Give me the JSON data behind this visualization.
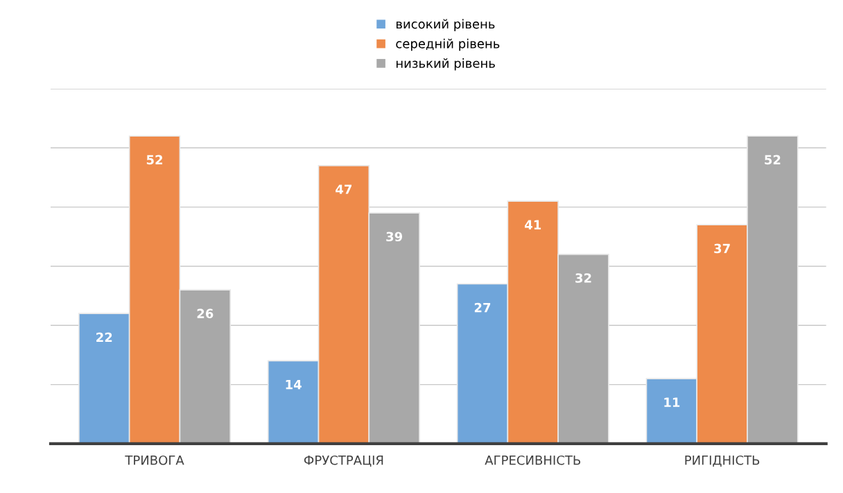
{
  "chart_data": {
    "type": "bar",
    "categories": [
      "ТРИВОГА",
      "ФРУСТРАЦІЯ",
      "АГРЕСИВНІСТЬ",
      "РИГІДНІСТЬ"
    ],
    "series": [
      {
        "name": "високий рівень",
        "color": "#6fa5da",
        "values": [
          22,
          14,
          27,
          11
        ]
      },
      {
        "name": "середній рівень",
        "color": "#ee8a4a",
        "values": [
          52,
          47,
          41,
          37
        ]
      },
      {
        "name": "низький рівень",
        "color": "#a8a8a8",
        "values": [
          26,
          39,
          32,
          52
        ]
      }
    ],
    "ylim": [
      0,
      60
    ],
    "yticks": [
      {
        "value": 0,
        "label": null
      },
      {
        "value": 10,
        "label": null
      },
      {
        "value": 20,
        "label": null
      },
      {
        "value": 30,
        "label": null
      },
      {
        "value": 40,
        "label": null
      },
      {
        "value": 50,
        "label": null
      },
      {
        "value": 60,
        "label": null
      }
    ],
    "grid": "y",
    "legend": "top",
    "data_labels": true,
    "tick_labels": "x"
  }
}
